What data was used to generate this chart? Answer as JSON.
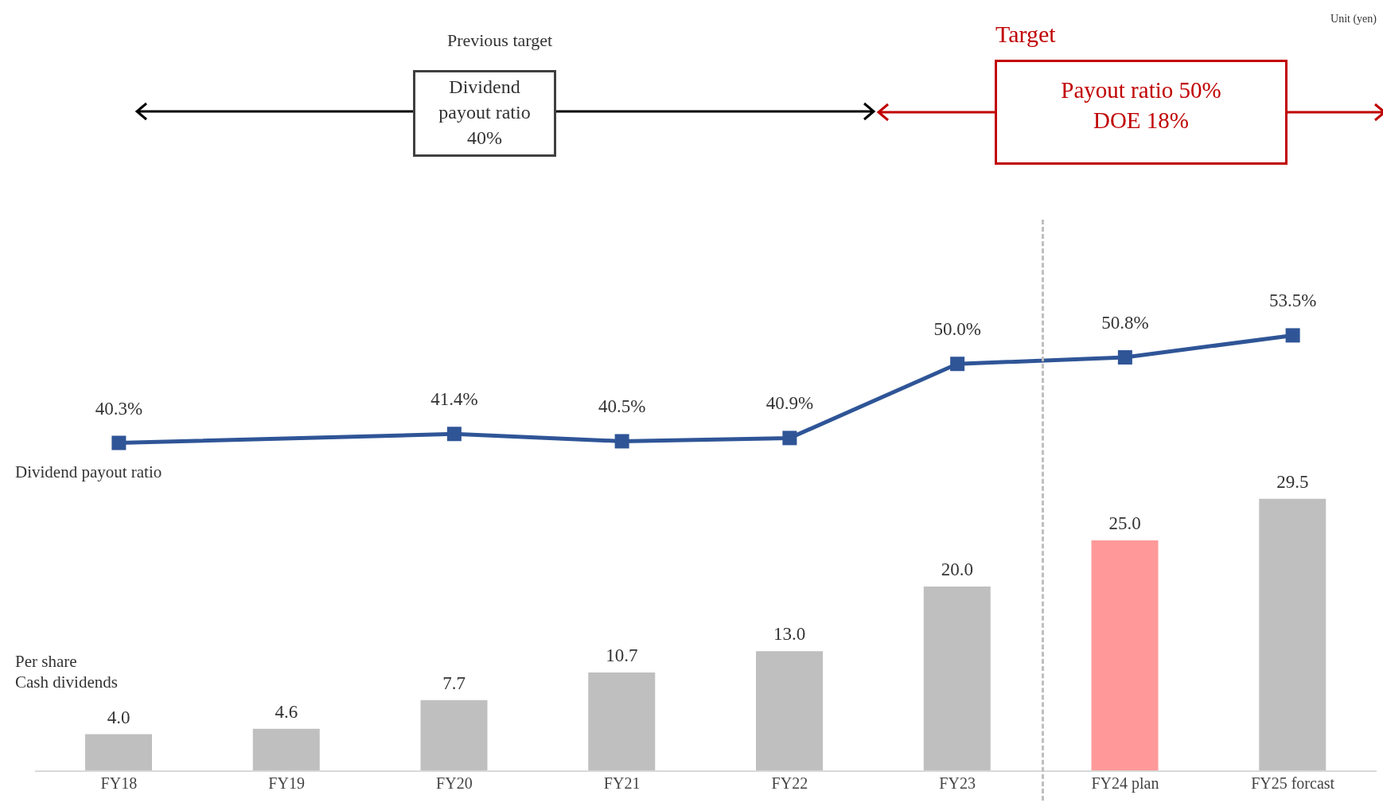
{
  "chart_data": {
    "type": "bar",
    "categories": [
      "FY18",
      "FY19",
      "FY20",
      "FY21",
      "FY22",
      "FY23",
      "FY24 plan",
      "FY25 forcast"
    ],
    "series": [
      {
        "name": "Per share\nCash dividends",
        "color": "#bfbfbf",
        "colors": [
          "#bfbfbf",
          "#bfbfbf",
          "#bfbfbf",
          "#bfbfbf",
          "#bfbfbf",
          "#bfbfbf",
          "#ff9999",
          "#bfbfbf"
        ],
        "values": [
          4.0,
          4.6,
          7.7,
          10.7,
          13.0,
          20.0,
          25.0,
          29.5
        ],
        "value_labels": [
          "4.0",
          "4.6",
          "7.7",
          "10.7",
          "13.0",
          "20.0",
          "25.0",
          "29.5"
        ]
      },
      {
        "name": "Dividend payout ratio",
        "type": "line",
        "axis": "y2",
        "color": "#2f5597",
        "values": [
          40.3,
          null,
          41.4,
          40.5,
          40.9,
          50.0,
          50.8,
          53.5
        ],
        "value_labels": [
          "40.3%",
          null,
          "41.4%",
          "40.5%",
          "40.9%",
          "50.0%",
          "50.8%",
          "53.5%"
        ]
      }
    ],
    "ylim": [
      0,
      60
    ],
    "y2lim": [
      0,
      68
    ],
    "tick_labels": "x",
    "marker": "square",
    "line_style": "solid",
    "legend": false,
    "grid": false,
    "annotations": [
      "Unit (yen)",
      "Previous target",
      "Dividend\npayout ratio\n40%",
      "Target",
      "Payout ratio 50%\n  DOE 18%"
    ]
  }
}
